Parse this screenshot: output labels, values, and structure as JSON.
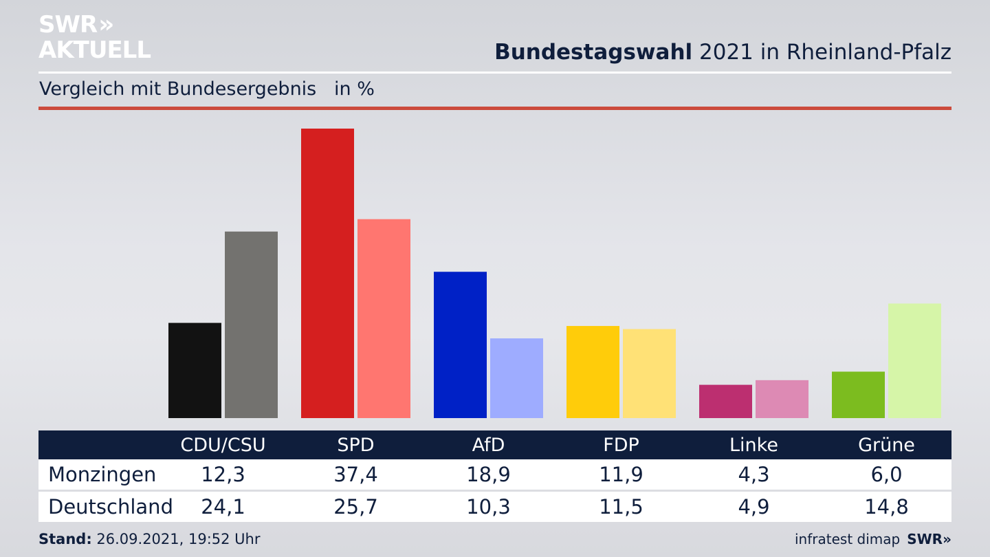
{
  "header": {
    "logo_line1": "SWR",
    "logo_chevron": "»",
    "logo_line2": "AKTUELL",
    "title_bold": "Bundestagswahl",
    "title_rest": " 2021 in Rheinland-Pfalz",
    "subtitle": "Vergleich mit Bundesergebnis   in %"
  },
  "colors": {
    "accent_rule": "#cc4b3c",
    "table_header_bg": "#0f1e3c"
  },
  "chart_data": {
    "type": "bar",
    "title": "Bundestagswahl 2021 in Rheinland-Pfalz",
    "subtitle": "Vergleich mit Bundesergebnis in %",
    "xlabel": "",
    "ylabel": "in %",
    "ylim": [
      0,
      37.4
    ],
    "grid": false,
    "categories": [
      "CDU/CSU",
      "SPD",
      "AfD",
      "FDP",
      "Linke",
      "Grüne"
    ],
    "series": [
      {
        "name": "Monzingen",
        "values": [
          12.3,
          37.4,
          18.9,
          11.9,
          4.3,
          6.0
        ],
        "labels": [
          "12,3",
          "37,4",
          "18,9",
          "11,9",
          "4,3",
          "6,0"
        ],
        "colors": [
          "#121212",
          "#d51f1f",
          "#0021c6",
          "#ffcc0a",
          "#bc2f70",
          "#7cbc1f"
        ]
      },
      {
        "name": "Deutschland",
        "values": [
          24.1,
          25.7,
          10.3,
          11.5,
          4.9,
          14.8
        ],
        "labels": [
          "24,1",
          "25,7",
          "10,3",
          "11,5",
          "4,9",
          "14,8"
        ],
        "colors": [
          "#73726f",
          "#ff7670",
          "#9eacff",
          "#ffe176",
          "#dd8ab4",
          "#d6f5a8"
        ]
      }
    ]
  },
  "table": {
    "rows": [
      {
        "label": "Monzingen"
      },
      {
        "label": "Deutschland"
      }
    ]
  },
  "footer": {
    "stand_label": "Stand:",
    "stand_value": " 26.09.2021, 19:52 Uhr",
    "source": "infratest dimap",
    "brand": "SWR»"
  }
}
